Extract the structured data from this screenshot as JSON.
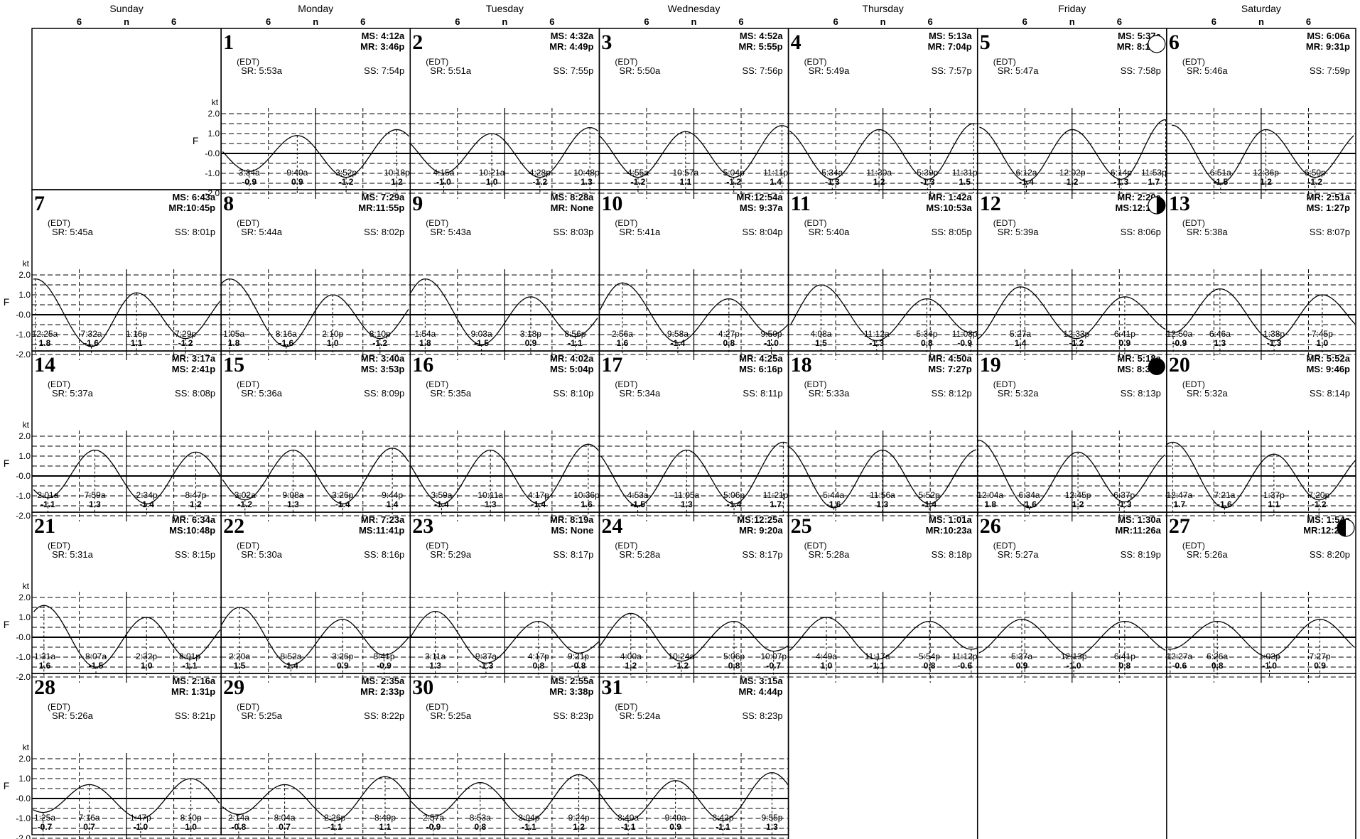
{
  "header": {
    "days": [
      "Sunday",
      "Monday",
      "Tuesday",
      "Wednesday",
      "Thursday",
      "Friday",
      "Saturday"
    ],
    "hour_marks": [
      "6",
      "n",
      "6"
    ]
  },
  "axis": {
    "unit": "kt",
    "flood_label": "F",
    "ticks": [
      "2.0",
      "1.0",
      "-0.0",
      "-1.0",
      "-2.0"
    ]
  },
  "tz_label": "(EDT)",
  "colors": {
    "line": "#000000",
    "background": "#ffffff"
  },
  "chart_data": {
    "type": "line",
    "y_unit": "kt",
    "ylim": [
      -2.0,
      2.0
    ],
    "x_range_hours": [
      0,
      24
    ],
    "grid": "dashed horizontal lines, vertical lines at 6, noon, 18",
    "days": [
      {
        "date": "1",
        "row": 0,
        "col": 1,
        "m1": "MS: 4:12a",
        "m2": "MR: 3:46p",
        "sr": "SR: 5:53a",
        "ss": "SS: 7:54p",
        "phase": null,
        "events": [
          {
            "t": "3:34a",
            "v": "-0.9"
          },
          {
            "t": "9:40a",
            "v": "0.9"
          },
          {
            "t": "3:52p",
            "v": "-1.2"
          },
          {
            "t": "10:18p",
            "v": "1.2"
          }
        ]
      },
      {
        "date": "2",
        "row": 0,
        "col": 2,
        "m1": "MS: 4:32a",
        "m2": "MR: 4:49p",
        "sr": "SR: 5:51a",
        "ss": "SS: 7:55p",
        "phase": null,
        "events": [
          {
            "t": "4:15a",
            "v": "-1.0"
          },
          {
            "t": "10:21a",
            "v": "1.0"
          },
          {
            "t": "4:28p",
            "v": "-1.2"
          },
          {
            "t": "10:48p",
            "v": "1.3"
          }
        ]
      },
      {
        "date": "3",
        "row": 0,
        "col": 3,
        "m1": "MS: 4:52a",
        "m2": "MR: 5:55p",
        "sr": "SR: 5:50a",
        "ss": "SS: 7:56p",
        "phase": null,
        "events": [
          {
            "t": "4:55a",
            "v": "-1.2"
          },
          {
            "t": "10:57a",
            "v": "1.1"
          },
          {
            "t": "5:04p",
            "v": "-1.2"
          },
          {
            "t": "11:11p",
            "v": "1.4"
          }
        ]
      },
      {
        "date": "4",
        "row": 0,
        "col": 4,
        "m1": "MS: 5:13a",
        "m2": "MR: 7:04p",
        "sr": "SR: 5:49a",
        "ss": "SS: 7:57p",
        "phase": null,
        "events": [
          {
            "t": "5:34a",
            "v": "-1.3"
          },
          {
            "t": "11:30a",
            "v": "1.2"
          },
          {
            "t": "5:39p",
            "v": "-1.3"
          },
          {
            "t": "11:31p",
            "v": "1.5"
          }
        ]
      },
      {
        "date": "5",
        "row": 0,
        "col": 5,
        "m1": "MS: 5:37a",
        "m2": "MR: 8:16p",
        "sr": "SR: 5:47a",
        "ss": "SS: 7:58p",
        "phase": "full",
        "events": [
          {
            "t": "6:12a",
            "v": "-1.4"
          },
          {
            "t": "12:02p",
            "v": "1.2"
          },
          {
            "t": "6:14p",
            "v": "-1.3"
          },
          {
            "t": "11:53p",
            "v": "1.7"
          }
        ]
      },
      {
        "date": "6",
        "row": 0,
        "col": 6,
        "m1": "MS: 6:06a",
        "m2": "MR: 9:31p",
        "sr": "SR: 5:46a",
        "ss": "SS: 7:59p",
        "phase": null,
        "events": [
          {
            "t": "6:51a",
            "v": "-1.5"
          },
          {
            "t": "12:36p",
            "v": "1.2"
          },
          {
            "t": "6:50p",
            "v": "-1.2"
          }
        ]
      },
      {
        "date": "7",
        "row": 1,
        "col": 0,
        "m1": "MS: 6:43a",
        "m2": "MR:10:45p",
        "sr": "SR: 5:45a",
        "ss": "SS: 8:01p",
        "phase": null,
        "events": [
          {
            "t": "12:25a",
            "v": "1.8"
          },
          {
            "t": "7:32a",
            "v": "-1.6"
          },
          {
            "t": "1:16p",
            "v": "1.1"
          },
          {
            "t": "7:29p",
            "v": "-1.2"
          }
        ]
      },
      {
        "date": "8",
        "row": 1,
        "col": 1,
        "m1": "MS: 7:29a",
        "m2": "MR:11:55p",
        "sr": "SR: 5:44a",
        "ss": "SS: 8:02p",
        "phase": null,
        "events": [
          {
            "t": "1:05a",
            "v": "1.8"
          },
          {
            "t": "8:16a",
            "v": "-1.6"
          },
          {
            "t": "2:10p",
            "v": "1.0"
          },
          {
            "t": "8:10p",
            "v": "-1.2"
          }
        ]
      },
      {
        "date": "9",
        "row": 1,
        "col": 2,
        "m1": "MS: 8:28a",
        "m2": "MR: None",
        "sr": "SR: 5:43a",
        "ss": "SS: 8:03p",
        "phase": null,
        "events": [
          {
            "t": "1:54a",
            "v": "1.8"
          },
          {
            "t": "9:03a",
            "v": "-1.5"
          },
          {
            "t": "3:18p",
            "v": "0.9"
          },
          {
            "t": "8:56p",
            "v": "-1.1"
          }
        ]
      },
      {
        "date": "10",
        "row": 1,
        "col": 3,
        "m1": "MR:12:54a",
        "m2": "MS: 9:37a",
        "sr": "SR: 5:41a",
        "ss": "SS: 8:04p",
        "phase": null,
        "events": [
          {
            "t": "2:56a",
            "v": "1.6"
          },
          {
            "t": "9:58a",
            "v": "-1.4"
          },
          {
            "t": "4:27p",
            "v": "0.8"
          },
          {
            "t": "9:50p",
            "v": "-1.0"
          }
        ]
      },
      {
        "date": "11",
        "row": 1,
        "col": 4,
        "m1": "MR: 1:42a",
        "m2": "MS:10:53a",
        "sr": "SR: 5:40a",
        "ss": "SS: 8:05p",
        "phase": null,
        "events": [
          {
            "t": "4:08a",
            "v": "1.5"
          },
          {
            "t": "11:12a",
            "v": "-1.3"
          },
          {
            "t": "5:34p",
            "v": "0.8"
          },
          {
            "t": "11:08p",
            "v": "-0.9"
          }
        ]
      },
      {
        "date": "12",
        "row": 1,
        "col": 5,
        "m1": "MR: 2:20a",
        "m2": "MS:12:11p",
        "sr": "SR: 5:39a",
        "ss": "SS: 8:06p",
        "phase": "last",
        "events": [
          {
            "t": "5:27a",
            "v": "1.4"
          },
          {
            "t": "12:33p",
            "v": "-1.2"
          },
          {
            "t": "6:41p",
            "v": "0.9"
          }
        ]
      },
      {
        "date": "13",
        "row": 1,
        "col": 6,
        "m1": "MR: 2:51a",
        "m2": "MS: 1:27p",
        "sr": "SR: 5:38a",
        "ss": "SS: 8:07p",
        "phase": null,
        "events": [
          {
            "t": "12:50a",
            "v": "-0.9"
          },
          {
            "t": "6:46a",
            "v": "1.3"
          },
          {
            "t": "1:38p",
            "v": "-1.3"
          },
          {
            "t": "7:45p",
            "v": "1.0"
          }
        ]
      },
      {
        "date": "14",
        "row": 2,
        "col": 0,
        "m1": "MR: 3:17a",
        "m2": "MS: 2:41p",
        "sr": "SR: 5:37a",
        "ss": "SS: 8:08p",
        "phase": null,
        "events": [
          {
            "t": "2:01a",
            "v": "-1.1"
          },
          {
            "t": "7:59a",
            "v": "1.3"
          },
          {
            "t": "2:34p",
            "v": "-1.4"
          },
          {
            "t": "8:47p",
            "v": "1.2"
          }
        ]
      },
      {
        "date": "15",
        "row": 2,
        "col": 1,
        "m1": "MR: 3:40a",
        "m2": "MS: 3:53p",
        "sr": "SR: 5:36a",
        "ss": "SS: 8:09p",
        "phase": null,
        "events": [
          {
            "t": "3:02a",
            "v": "-1.2"
          },
          {
            "t": "9:08a",
            "v": "1.3"
          },
          {
            "t": "3:26p",
            "v": "-1.4"
          },
          {
            "t": "9:44p",
            "v": "1.4"
          }
        ]
      },
      {
        "date": "16",
        "row": 2,
        "col": 2,
        "m1": "MR: 4:02a",
        "m2": "MS: 5:04p",
        "sr": "SR: 5:35a",
        "ss": "SS: 8:10p",
        "phase": null,
        "events": [
          {
            "t": "3:59a",
            "v": "-1.4"
          },
          {
            "t": "10:11a",
            "v": "1.3"
          },
          {
            "t": "4:17p",
            "v": "-1.4"
          },
          {
            "t": "10:36p",
            "v": "1.6"
          }
        ]
      },
      {
        "date": "17",
        "row": 2,
        "col": 3,
        "m1": "MR: 4:25a",
        "m2": "MS: 6:16p",
        "sr": "SR: 5:34a",
        "ss": "SS: 8:11p",
        "phase": null,
        "events": [
          {
            "t": "4:53a",
            "v": "-1.5"
          },
          {
            "t": "11:05a",
            "v": "1.3"
          },
          {
            "t": "5:06p",
            "v": "-1.4"
          },
          {
            "t": "11:21p",
            "v": "1.7"
          }
        ]
      },
      {
        "date": "18",
        "row": 2,
        "col": 4,
        "m1": "MR: 4:50a",
        "m2": "MS: 7:27p",
        "sr": "SR: 5:33a",
        "ss": "SS: 8:12p",
        "phase": null,
        "events": [
          {
            "t": "5:44a",
            "v": "-1.6"
          },
          {
            "t": "11:56a",
            "v": "1.3"
          },
          {
            "t": "5:52p",
            "v": "-1.4"
          }
        ]
      },
      {
        "date": "19",
        "row": 2,
        "col": 5,
        "m1": "MR: 5:18a",
        "m2": "MS: 8:38p",
        "sr": "SR: 5:32a",
        "ss": "SS: 8:13p",
        "phase": "new",
        "events": [
          {
            "t": "12:04a",
            "v": "1.8"
          },
          {
            "t": "6:34a",
            "v": "-1.6"
          },
          {
            "t": "12:45p",
            "v": "1.2"
          },
          {
            "t": "6:37p",
            "v": "-1.3"
          }
        ]
      },
      {
        "date": "20",
        "row": 2,
        "col": 6,
        "m1": "MR: 5:52a",
        "m2": "MS: 9:46p",
        "sr": "SR: 5:32a",
        "ss": "SS: 8:14p",
        "phase": null,
        "events": [
          {
            "t": "12:47a",
            "v": "1.7"
          },
          {
            "t": "7:21a",
            "v": "-1.6"
          },
          {
            "t": "1:37p",
            "v": "1.1"
          },
          {
            "t": "7:20p",
            "v": "-1.2"
          }
        ]
      },
      {
        "date": "21",
        "row": 3,
        "col": 0,
        "m1": "MR: 6:34a",
        "m2": "MS:10:48p",
        "sr": "SR: 5:31a",
        "ss": "SS: 8:15p",
        "phase": null,
        "events": [
          {
            "t": "1:31a",
            "v": "1.6"
          },
          {
            "t": "8:07a",
            "v": "-1.5"
          },
          {
            "t": "2:32p",
            "v": "1.0"
          },
          {
            "t": "8:01p",
            "v": "-1.1"
          }
        ]
      },
      {
        "date": "22",
        "row": 3,
        "col": 1,
        "m1": "MR: 7:23a",
        "m2": "MS:11:41p",
        "sr": "SR: 5:30a",
        "ss": "SS: 8:16p",
        "phase": null,
        "events": [
          {
            "t": "2:20a",
            "v": "1.5"
          },
          {
            "t": "8:52a",
            "v": "-1.4"
          },
          {
            "t": "3:26p",
            "v": "0.9"
          },
          {
            "t": "8:41p",
            "v": "-0.9"
          }
        ]
      },
      {
        "date": "23",
        "row": 3,
        "col": 2,
        "m1": "MR: 8:19a",
        "m2": "MS: None",
        "sr": "SR: 5:29a",
        "ss": "SS: 8:17p",
        "phase": null,
        "events": [
          {
            "t": "3:11a",
            "v": "1.3"
          },
          {
            "t": "9:37a",
            "v": "-1.3"
          },
          {
            "t": "4:17p",
            "v": "0.8"
          },
          {
            "t": "9:21p",
            "v": "-0.8"
          }
        ]
      },
      {
        "date": "24",
        "row": 3,
        "col": 3,
        "m1": "MS:12:25a",
        "m2": "MR: 9:20a",
        "sr": "SR: 5:28a",
        "ss": "SS: 8:17p",
        "phase": null,
        "events": [
          {
            "t": "4:00a",
            "v": "1.2"
          },
          {
            "t": "10:24a",
            "v": "-1.2"
          },
          {
            "t": "5:06p",
            "v": "0.8"
          },
          {
            "t": "10:07p",
            "v": "-0.7"
          }
        ]
      },
      {
        "date": "25",
        "row": 3,
        "col": 4,
        "m1": "MS: 1:01a",
        "m2": "MR:10:23a",
        "sr": "SR: 5:28a",
        "ss": "SS: 8:18p",
        "phase": null,
        "events": [
          {
            "t": "4:49a",
            "v": "1.0"
          },
          {
            "t": "11:17a",
            "v": "-1.1"
          },
          {
            "t": "5:54p",
            "v": "0.8"
          },
          {
            "t": "11:12p",
            "v": "-0.6"
          }
        ]
      },
      {
        "date": "26",
        "row": 3,
        "col": 5,
        "m1": "MS: 1:30a",
        "m2": "MR:11:26a",
        "sr": "SR: 5:27a",
        "ss": "SS: 8:19p",
        "phase": null,
        "events": [
          {
            "t": "5:37a",
            "v": "0.9"
          },
          {
            "t": "12:13p",
            "v": "-1.0"
          },
          {
            "t": "6:41p",
            "v": "0.8"
          }
        ]
      },
      {
        "date": "27",
        "row": 3,
        "col": 6,
        "m1": "MS: 1:54a",
        "m2": "MR:12:29p",
        "sr": "SR: 5:26a",
        "ss": "SS: 8:20p",
        "phase": "first",
        "events": [
          {
            "t": "12:27a",
            "v": "-0.6"
          },
          {
            "t": "6:26a",
            "v": "0.8"
          },
          {
            "t": "1:03p",
            "v": "-1.0"
          },
          {
            "t": "7:27p",
            "v": "0.9"
          }
        ]
      },
      {
        "date": "28",
        "row": 4,
        "col": 0,
        "m1": "MS: 2:16a",
        "m2": "MR: 1:31p",
        "sr": "SR: 5:26a",
        "ss": "SS: 8:21p",
        "phase": null,
        "events": [
          {
            "t": "1:25a",
            "v": "-0.7"
          },
          {
            "t": "7:16a",
            "v": "0.7"
          },
          {
            "t": "1:47p",
            "v": "-1.0"
          },
          {
            "t": "8:10p",
            "v": "1.0"
          }
        ]
      },
      {
        "date": "29",
        "row": 4,
        "col": 1,
        "m1": "MS: 2:35a",
        "m2": "MR: 2:33p",
        "sr": "SR: 5:25a",
        "ss": "SS: 8:22p",
        "phase": null,
        "events": [
          {
            "t": "2:14a",
            "v": "-0.8"
          },
          {
            "t": "8:04a",
            "v": "0.7"
          },
          {
            "t": "2:26p",
            "v": "-1.1"
          },
          {
            "t": "8:49p",
            "v": "1.1"
          }
        ]
      },
      {
        "date": "30",
        "row": 4,
        "col": 2,
        "m1": "MS: 2:55a",
        "m2": "MR: 3:38p",
        "sr": "SR: 5:25a",
        "ss": "SS: 8:23p",
        "phase": null,
        "events": [
          {
            "t": "2:57a",
            "v": "-0.9"
          },
          {
            "t": "8:53a",
            "v": "0.8"
          },
          {
            "t": "3:04p",
            "v": "-1.1"
          },
          {
            "t": "9:24p",
            "v": "1.2"
          }
        ]
      },
      {
        "date": "31",
        "row": 4,
        "col": 3,
        "m1": "MS: 3:15a",
        "m2": "MR: 4:44p",
        "sr": "SR: 5:24a",
        "ss": "SS: 8:23p",
        "phase": null,
        "events": [
          {
            "t": "3:40a",
            "v": "-1.1"
          },
          {
            "t": "9:40a",
            "v": "0.9"
          },
          {
            "t": "3:42p",
            "v": "-1.1"
          },
          {
            "t": "9:55p",
            "v": "1.3"
          }
        ]
      }
    ]
  }
}
